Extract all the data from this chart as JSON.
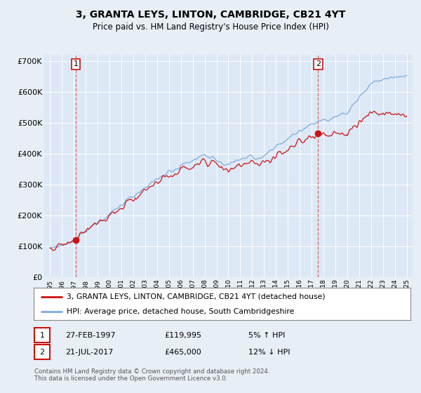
{
  "title": "3, GRANTA LEYS, LINTON, CAMBRIDGE, CB21 4YT",
  "subtitle": "Price paid vs. HM Land Registry's House Price Index (HPI)",
  "bg_color": "#e8eef5",
  "plot_bg": "#dce8f5",
  "sale1_date": 1997.15,
  "sale1_price": 119995,
  "sale2_date": 2017.55,
  "sale2_price": 465000,
  "legend_line1": "3, GRANTA LEYS, LINTON, CAMBRIDGE, CB21 4YT (detached house)",
  "legend_line2": "HPI: Average price, detached house, South Cambridgeshire",
  "table_row1": [
    "1",
    "27-FEB-1997",
    "£119,995",
    "5% ↑ HPI"
  ],
  "table_row2": [
    "2",
    "21-JUL-2017",
    "£465,000",
    "12% ↓ HPI"
  ],
  "footer": "Contains HM Land Registry data © Crown copyright and database right 2024.\nThis data is licensed under the Open Government Licence v3.0.",
  "ylim": [
    0,
    720000
  ],
  "xlim": [
    1994.5,
    2025.5
  ],
  "yticks": [
    0,
    100000,
    200000,
    300000,
    400000,
    500000,
    600000,
    700000
  ],
  "ytick_labels": [
    "£0",
    "£100K",
    "£200K",
    "£300K",
    "£400K",
    "£500K",
    "£600K",
    "£700K"
  ],
  "xtick_years": [
    1995,
    1996,
    1997,
    1998,
    1999,
    2000,
    2001,
    2002,
    2003,
    2004,
    2005,
    2006,
    2007,
    2008,
    2009,
    2010,
    2011,
    2012,
    2013,
    2014,
    2015,
    2016,
    2017,
    2018,
    2019,
    2020,
    2021,
    2022,
    2023,
    2024,
    2025
  ],
  "hpi_color": "#7aaadd",
  "price_color": "#cc1111",
  "dashed_color": "#dd4444"
}
